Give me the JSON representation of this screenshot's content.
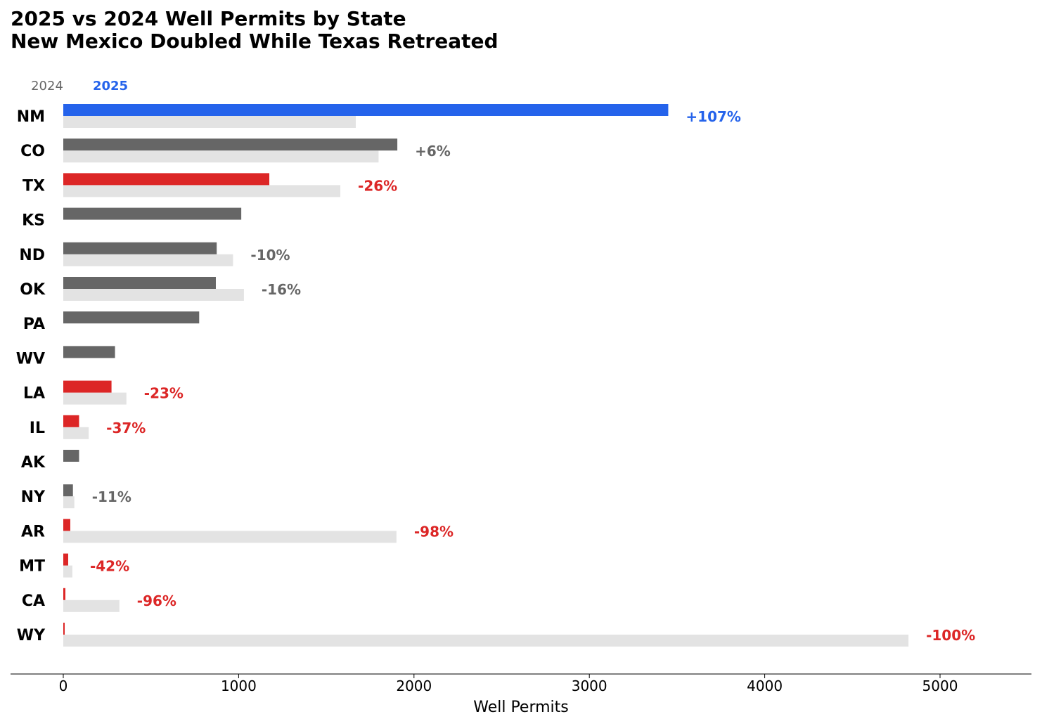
{
  "title_line1": "2025 vs 2024 Well Permits by State",
  "title_line2": "New Mexico Doubled While Texas Retreated",
  "legend": {
    "label_2024": "2024",
    "label_2025": "2025"
  },
  "colors": {
    "highlight": "#2563eb",
    "increase": "#666666",
    "decline": "#dc2626",
    "prior_year": "#e3e3e3",
    "neutral_label": "#666666"
  },
  "chart_data": {
    "type": "bar",
    "orientation": "horizontal",
    "xlabel": "Well Permits",
    "xlim": [
      -300,
      5500
    ],
    "xticks": [
      0,
      1000,
      2000,
      3000,
      4000,
      5000
    ],
    "categories": [
      "NM",
      "CO",
      "TX",
      "KS",
      "ND",
      "OK",
      "PA",
      "WV",
      "LA",
      "IL",
      "AK",
      "NY",
      "AR",
      "MT",
      "CA",
      "WY"
    ],
    "series": [
      {
        "name": "2025",
        "values": [
          3450,
          1905,
          1175,
          1015,
          875,
          870,
          775,
          295,
          275,
          90,
          90,
          55,
          40,
          28,
          12,
          8
        ]
      },
      {
        "name": "2024",
        "values": [
          1668,
          1798,
          1580,
          null,
          968,
          1030,
          null,
          null,
          360,
          145,
          null,
          63,
          1900,
          52,
          320,
          4820
        ]
      }
    ],
    "change_labels": [
      "+107%",
      "+6%",
      "-26%",
      "",
      "-10%",
      "-16%",
      "",
      "",
      "-23%",
      "-37%",
      "",
      "-11%",
      "-98%",
      "-42%",
      "-96%",
      "-100%"
    ],
    "bar_status": [
      "highlight",
      "neutral",
      "decline",
      "neutral",
      "neutral",
      "neutral",
      "neutral",
      "neutral",
      "decline",
      "decline",
      "neutral",
      "neutral",
      "decline",
      "decline",
      "decline",
      "decline"
    ],
    "legend_placement": "top-left",
    "grid": false
  }
}
